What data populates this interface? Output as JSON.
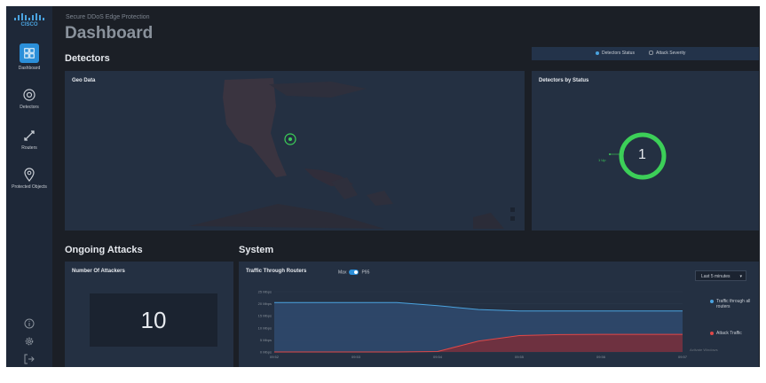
{
  "app": {
    "brand": "cisco",
    "subtitle": "Secure DDoS Edge Protection",
    "title": "Dashboard"
  },
  "sidebar": {
    "items": [
      {
        "label": "Dashboard",
        "icon": "dashboard-icon",
        "active": true
      },
      {
        "label": "Detectors",
        "icon": "detectors-icon",
        "active": false
      },
      {
        "label": "Routers",
        "icon": "routers-icon",
        "active": false
      },
      {
        "label": "Protected Objects",
        "icon": "protected-objects-icon",
        "active": false
      }
    ],
    "bottom_icons": [
      "info-icon",
      "gear-icon",
      "logout-icon"
    ]
  },
  "detectors": {
    "heading": "Detectors",
    "toggle": {
      "options": [
        "Detectors Status",
        "Attack Severity"
      ],
      "selected": "Detectors Status"
    },
    "geo_panel": {
      "title": "Geo Data"
    },
    "status_panel": {
      "title": "Detectors by Status",
      "value": "1",
      "legend": "1 Up"
    }
  },
  "ongoing_attacks": {
    "heading": "Ongoing Attacks",
    "attackers_panel": {
      "title": "Number Of Attackers",
      "value": "10"
    }
  },
  "system": {
    "heading": "System",
    "traffic_panel": {
      "title": "Traffic Through Routers",
      "switch": {
        "left": "Max",
        "right": "P95"
      },
      "range": "Last 5 minutes",
      "legend": [
        {
          "label": "Traffic through all routers",
          "color": "#4aa3df"
        },
        {
          "label": "Attack Traffic",
          "color": "#e04848"
        }
      ],
      "watermark": "Activate Windows"
    }
  },
  "colors": {
    "accent": "#2b8fd9",
    "up": "#3ccf58",
    "attack": "#e04848",
    "traffic": "#4aa3df"
  },
  "chart_data": {
    "type": "area",
    "y_tick_labels": [
      "25 Mbps",
      "20 Mbps",
      "15 Mbps",
      "10 Mbps",
      "5 Mbps",
      "0 Mbps"
    ],
    "x_tick_labels": [
      "09:52",
      "09:53",
      "09:54",
      "09:55",
      "09:56",
      "09:57"
    ],
    "x": [
      0,
      0.5,
      1,
      1.5,
      2,
      2.5,
      3,
      3.5,
      4,
      4.5,
      5
    ],
    "series": [
      {
        "name": "Traffic through all routers",
        "values": [
          20.5,
          20.5,
          20.5,
          20.5,
          19.2,
          17.6,
          17.0,
          17.0,
          17.0,
          17.0,
          17.0
        ]
      },
      {
        "name": "Attack Traffic",
        "values": [
          0,
          0,
          0,
          0,
          0.2,
          4.5,
          6.8,
          7.2,
          7.3,
          7.3,
          7.3
        ]
      }
    ],
    "ylim": [
      0,
      25
    ]
  }
}
